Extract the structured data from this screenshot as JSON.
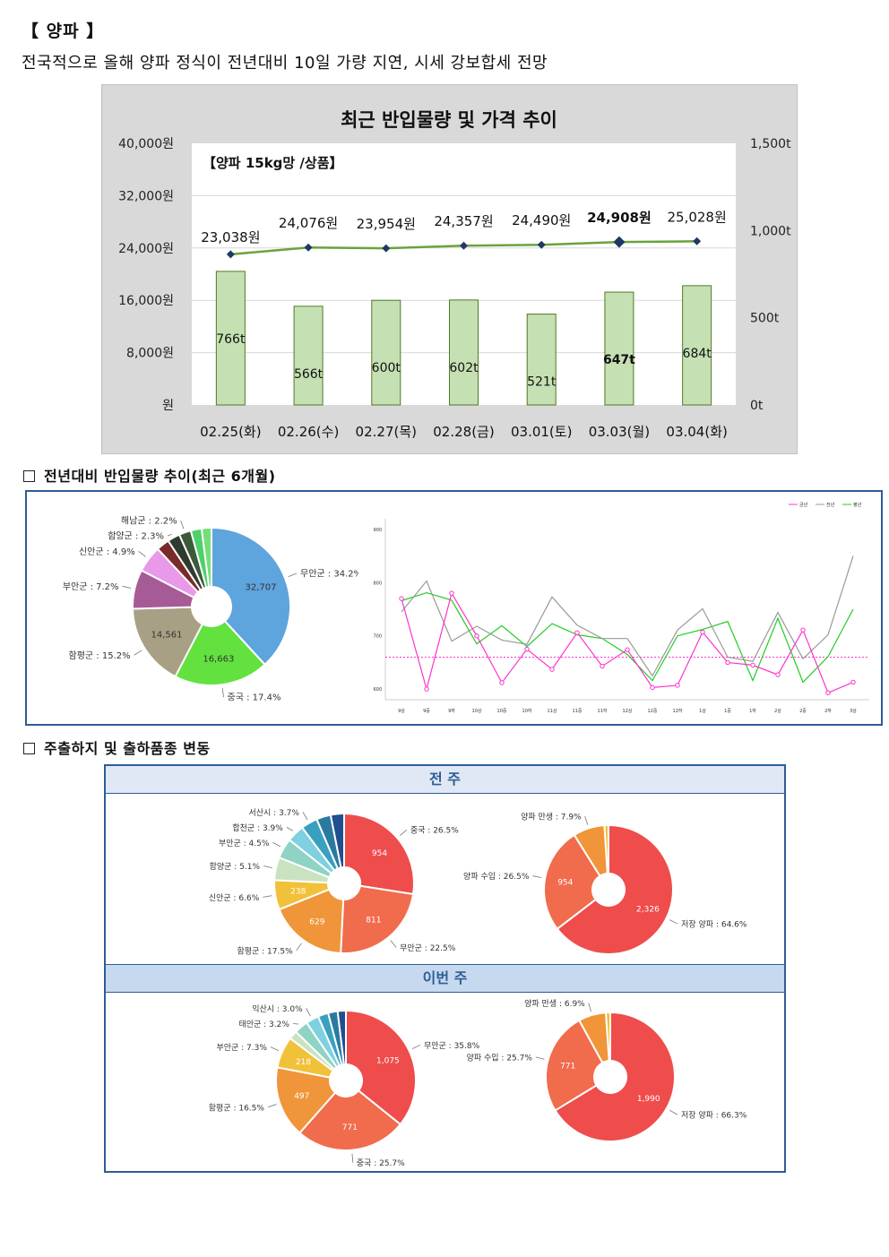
{
  "header": {
    "title": "【 양파 】",
    "subtitle": "전국적으로 올해 양파 정식이 전년대비 10일 가량 지연, 시세 강보합세 전망"
  },
  "colors": {
    "bar": "#c5e0b3",
    "bar_border": "#4f7a28",
    "line": "#6aa33a",
    "marker": "#1f3864",
    "panel_border": "#2e5d95",
    "band": "#dfe8f4",
    "pie_local": [
      "#5ea4dd",
      "#63e13f",
      "#a8a085",
      "#a65b96",
      "#e89ae8",
      "#7a2a2a",
      "#2e3b2e",
      "#3a5a3a",
      "#4ed06a",
      "#76de76"
    ],
    "pie_red": [
      "#ef4c4c",
      "#f06c4c",
      "#f0953a",
      "#f2c13a",
      "#c9e3c0",
      "#8fd3c4",
      "#7fd0e0",
      "#3aa0c0",
      "#2a7aa0",
      "#1f4f90"
    ],
    "pie_type": [
      "#ef4c4c",
      "#f06c4c",
      "#f0953a",
      "#f2c13a"
    ],
    "line_series": [
      "#ff33cc",
      "#999999",
      "#22cc22"
    ]
  },
  "chart_data": [
    {
      "type": "bar",
      "title": "최근 반입물량 및 가격 추이",
      "subtitle": "【양파 15kg망 /상품】",
      "categories": [
        "02.25(화)",
        "02.26(수)",
        "02.27(목)",
        "02.28(금)",
        "03.01(토)",
        "03.03(월)",
        "03.04(화)"
      ],
      "series": [
        {
          "values": [
            766,
            566,
            600,
            602,
            521,
            647,
            684
          ],
          "labels": [
            "766t",
            "566t",
            "600t",
            "602t",
            "521t",
            "647t",
            "684t"
          ],
          "axis": "right"
        },
        {
          "type": "line",
          "values": [
            23038,
            24076,
            23954,
            24357,
            24490,
            24908,
            25028
          ],
          "labels": [
            "23,038원",
            "24,076원",
            "23,954원",
            "24,357원",
            "24,490원",
            "24,908원",
            "25,028원"
          ],
          "axis": "left"
        }
      ],
      "y_left": {
        "lim": [
          0,
          40000
        ],
        "ticks": [
          "원",
          "8,000원",
          "16,000원",
          "24,000원",
          "32,000원",
          "40,000원"
        ]
      },
      "y_right": {
        "lim": [
          0,
          1500
        ],
        "ticks": [
          "0t",
          "500t",
          "1,000t",
          "1,500t"
        ]
      },
      "highlight_index": 5,
      "grid": true
    },
    {
      "type": "pie",
      "section": "전년대비 반입물량 추이(최근 6개월)",
      "slices": [
        {
          "label": "무안군 : 34.2%",
          "pct": 34.2,
          "value": "32,707"
        },
        {
          "label": "중국 : 17.4%",
          "pct": 17.4,
          "value": "16,663"
        },
        {
          "label": "함평군 : 15.2%",
          "pct": 15.2,
          "value": "14,561"
        },
        {
          "label": "부안군 : 7.2%",
          "pct": 7.2,
          "value": ""
        },
        {
          "label": "신안군 : 4.9%",
          "pct": 4.9,
          "value": ""
        },
        {
          "label": "",
          "pct": 2.4,
          "value": ""
        },
        {
          "label": "함양군 : 2.3%",
          "pct": 2.3,
          "value": ""
        },
        {
          "label": "해남군 : 2.2%",
          "pct": 2.2,
          "value": ""
        },
        {
          "label": "",
          "pct": 2.0,
          "value": ""
        },
        {
          "label": "",
          "pct": 1.8,
          "value": ""
        }
      ]
    },
    {
      "type": "line",
      "legend": [
        "금년",
        "전년",
        "평년"
      ],
      "legend_position": "top-right",
      "categories": [
        "9상",
        "9중",
        "9하",
        "10상",
        "10중",
        "10하",
        "11상",
        "11중",
        "11하",
        "12상",
        "12중",
        "12하",
        "1상",
        "1중",
        "1하",
        "2상",
        "2중",
        "2하",
        "3상"
      ],
      "y_ticks": [
        "600",
        "700",
        "800",
        "900"
      ],
      "ylim": [
        580,
        920
      ],
      "series": [
        {
          "name": "금년",
          "values": [
            770,
            600,
            780,
            700,
            612,
            675,
            637,
            706,
            643,
            674,
            603,
            607,
            707,
            650,
            645,
            627,
            711,
            593,
            613
          ]
        },
        {
          "name": "전년",
          "values": [
            745,
            803,
            690,
            718,
            692,
            684,
            773,
            720,
            695,
            695,
            625,
            711,
            751,
            660,
            652,
            744,
            657,
            702,
            850
          ]
        },
        {
          "name": "평년",
          "values": [
            766,
            781,
            767,
            685,
            719,
            680,
            723,
            702,
            695,
            665,
            616,
            700,
            712,
            727,
            616,
            733,
            613,
            661,
            750
          ]
        }
      ],
      "reference_line": 660
    }
  ],
  "section3": {
    "title": "주출하지 및 출하품종 변동",
    "prev_label": "전 주",
    "this_label": "이번 주",
    "prev_origin": [
      {
        "label": "중국 : 26.5%",
        "pct": 26.5,
        "value": "954"
      },
      {
        "label": "무안군 : 22.5%",
        "pct": 22.5,
        "value": "811"
      },
      {
        "label": "함평군 : 17.5%",
        "pct": 17.5,
        "value": "629"
      },
      {
        "label": "신안군 : 6.6%",
        "pct": 6.6,
        "value": "238"
      },
      {
        "label": "함양군 : 5.1%",
        "pct": 5.1,
        "value": ""
      },
      {
        "label": "부안군 : 4.5%",
        "pct": 4.5,
        "value": ""
      },
      {
        "label": "합천군 : 3.9%",
        "pct": 3.9,
        "value": ""
      },
      {
        "label": "서산시 : 3.7%",
        "pct": 3.7,
        "value": ""
      },
      {
        "label": "",
        "pct": 3.2,
        "value": ""
      },
      {
        "label": "",
        "pct": 3.0,
        "value": ""
      }
    ],
    "prev_type": [
      {
        "label": "저장 양파 : 64.6%",
        "pct": 64.6,
        "value": "2,326"
      },
      {
        "label": "양파 수입 : 26.5%",
        "pct": 26.5,
        "value": "954"
      },
      {
        "label": "양파 만생 : 7.9%",
        "pct": 7.9,
        "value": ""
      },
      {
        "label": "",
        "pct": 1.0,
        "value": ""
      }
    ],
    "this_origin": [
      {
        "label": "무안군 : 35.8%",
        "pct": 35.8,
        "value": "1,075"
      },
      {
        "label": "중국 : 25.7%",
        "pct": 25.7,
        "value": "771"
      },
      {
        "label": "함평군 : 16.5%",
        "pct": 16.5,
        "value": "497"
      },
      {
        "label": "부안군 : 7.3%",
        "pct": 7.3,
        "value": "218"
      },
      {
        "label": "",
        "pct": 2.0,
        "value": ""
      },
      {
        "label": "태안군 : 3.2%",
        "pct": 3.2,
        "value": ""
      },
      {
        "label": "익산시 : 3.0%",
        "pct": 3.0,
        "value": ""
      },
      {
        "label": "",
        "pct": 2.4,
        "value": ""
      },
      {
        "label": "",
        "pct": 2.2,
        "value": ""
      },
      {
        "label": "",
        "pct": 1.9,
        "value": ""
      }
    ],
    "this_type": [
      {
        "label": "저장 양파 : 66.3%",
        "pct": 66.3,
        "value": "1,990"
      },
      {
        "label": "양파 수입 : 25.7%",
        "pct": 25.7,
        "value": "771"
      },
      {
        "label": "양파 만생 : 6.9%",
        "pct": 6.9,
        "value": ""
      },
      {
        "label": "",
        "pct": 1.1,
        "value": ""
      }
    ]
  }
}
